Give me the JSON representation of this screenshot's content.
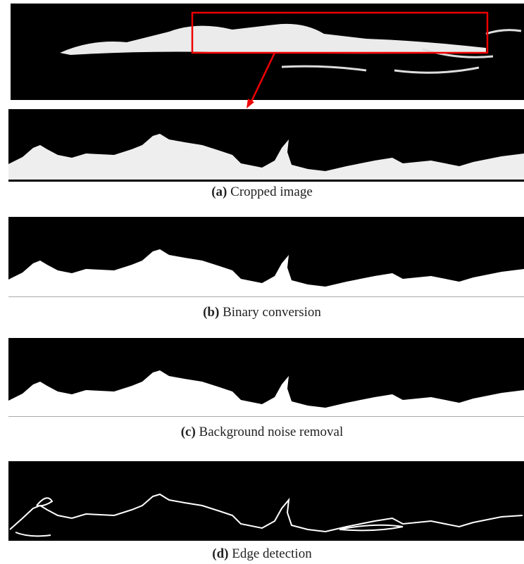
{
  "figure": {
    "panels": [
      {
        "label": "(a)",
        "caption": "Cropped image"
      },
      {
        "label": "(b)",
        "caption": "Binary conversion"
      },
      {
        "label": "(c)",
        "caption": "Background noise removal"
      },
      {
        "label": "(d)",
        "caption": "Edge detection"
      }
    ]
  }
}
